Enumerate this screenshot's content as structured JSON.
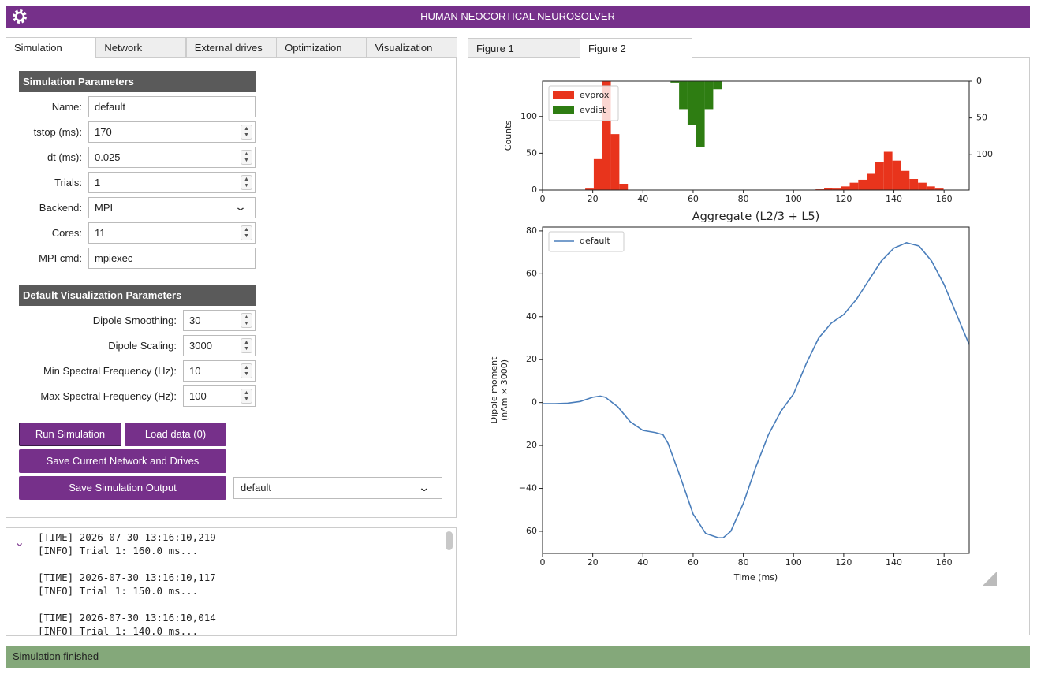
{
  "header": {
    "title": "HUMAN NEOCORTICAL NEUROSOLVER"
  },
  "tabs": [
    "Simulation",
    "Network",
    "External drives",
    "Optimization",
    "Visualization"
  ],
  "simulation_parameters": {
    "title": "Simulation Parameters",
    "fields": [
      {
        "label": "Name:",
        "value": "default"
      },
      {
        "label": "tstop (ms):",
        "value": 170
      },
      {
        "label": "dt (ms):",
        "value": 0.025
      },
      {
        "label": "Trials:",
        "value": 1
      },
      {
        "label": "Backend:",
        "value": "MPI"
      },
      {
        "label": "Cores:",
        "value": 11
      },
      {
        "label": "MPI cmd:",
        "value": "mpiexec"
      }
    ]
  },
  "visualization_parameters": {
    "title": "Default Visualization Parameters",
    "fields": [
      {
        "label": "Dipole Smoothing:",
        "value": 30
      },
      {
        "label": "Dipole Scaling:",
        "value": 3000
      },
      {
        "label": "Min Spectral Frequency (Hz):",
        "value": 10
      },
      {
        "label": "Max Spectral Frequency (Hz):",
        "value": 100
      }
    ]
  },
  "buttons": [
    "Run Simulation",
    "Load data (0)",
    "Save Current Network and Drives",
    "Save Simulation Output"
  ],
  "output_select": "default",
  "log": [
    "[TIME] 2026-07-30 13:16:10,219",
    "[INFO] Trial 1: 160.0 ms...",
    "[TIME] 2026-07-30 13:16:10,117",
    "[INFO] Trial 1: 150.0 ms...",
    "[TIME] 2026-07-30 13:16:10,014",
    "[INFO] Trial 1: 140.0 ms..."
  ],
  "figure_tabs": [
    "Figure 1",
    "Figure 2"
  ],
  "status": "Simulation finished",
  "chart_data": [
    {
      "type": "histogram",
      "xlabel": "Aggregate (L2/3 + L5)",
      "ylabel": "Counts",
      "bins": [
        0,
        3.4,
        6.8,
        10.2,
        13.6,
        17,
        20.4,
        23.8,
        27.2,
        30.6,
        34,
        37.4,
        40.8,
        44.2,
        47.6,
        51,
        54.4,
        57.8,
        61.2,
        64.6,
        68,
        71.4,
        74.8,
        78.2,
        81.6,
        85,
        88.4,
        91.8,
        95.2,
        98.6,
        102,
        105.4,
        108.8,
        112.2,
        115.6,
        119,
        122.4,
        125.8,
        129.2,
        132.6,
        136,
        139.4,
        142.8,
        146.2,
        149.6,
        153,
        156.4,
        159.8,
        163.2,
        166.6,
        170
      ],
      "series": [
        {
          "name": "evprox",
          "color": "#e8341c",
          "values": [
            0,
            0,
            0,
            0,
            0,
            2,
            42,
            148,
            76,
            8,
            0,
            0,
            0,
            0,
            0,
            0,
            0,
            0,
            0,
            0,
            0,
            0,
            0,
            0,
            0,
            0,
            0,
            0,
            0,
            0,
            0,
            0,
            1,
            3,
            2,
            5,
            10,
            14,
            22,
            38,
            52,
            40,
            26,
            15,
            10,
            5,
            2,
            0,
            0,
            0
          ]
        },
        {
          "name": "evdist",
          "color": "#2e7d12",
          "axis": "y2",
          "values": [
            0,
            0,
            0,
            0,
            0,
            0,
            0,
            0,
            0,
            0,
            0,
            0,
            0,
            0,
            0,
            2,
            38,
            60,
            89,
            38,
            11,
            0,
            0,
            0,
            0,
            0,
            0,
            0,
            0,
            0,
            0,
            0,
            0,
            0,
            0,
            0,
            0,
            0,
            0,
            0,
            0,
            0,
            0,
            0,
            0,
            0,
            0,
            0,
            0,
            0
          ]
        }
      ],
      "xlim": [
        0,
        170
      ],
      "xticks": [
        0,
        20,
        40,
        60,
        80,
        100,
        120,
        140,
        160
      ],
      "ylim": [
        0,
        148
      ],
      "yticks": [
        0,
        50,
        100
      ],
      "y2lim": [
        148,
        0
      ],
      "y2ticks": [
        0,
        50,
        100
      ],
      "legend": "upper left"
    },
    {
      "type": "line",
      "xlabel": "Time (ms)",
      "ylabel": [
        "Dipole moment",
        "(nAm × 3000)"
      ],
      "x": [
        0,
        5,
        10,
        15,
        20,
        23,
        25,
        30,
        35,
        40,
        45,
        48,
        50,
        55,
        60,
        65,
        70,
        72,
        75,
        80,
        85,
        90,
        95,
        100,
        105,
        110,
        115,
        120,
        125,
        130,
        135,
        140,
        145,
        150,
        155,
        160,
        165,
        170
      ],
      "series": [
        {
          "name": "default",
          "color": "#4a7ebb",
          "values": [
            -0.5,
            -0.5,
            -0.3,
            0.5,
            2.5,
            3,
            2.5,
            -2,
            -9,
            -13,
            -14,
            -15,
            -19,
            -35,
            -52,
            -61,
            -63,
            -63,
            -60,
            -47,
            -30,
            -15,
            -4,
            4,
            18,
            30,
            37,
            41,
            48,
            57,
            66,
            72,
            74.5,
            73,
            66,
            55,
            41,
            27
          ]
        }
      ],
      "xlim": [
        0,
        170
      ],
      "xticks": [
        0,
        20,
        40,
        60,
        80,
        100,
        120,
        140,
        160
      ],
      "ylim": [
        -70.3,
        81.8
      ],
      "yticks": [
        {
          "value": -60,
          "label": "−60"
        },
        {
          "value": -40,
          "label": "−40"
        },
        {
          "value": -20,
          "label": "−20"
        },
        0,
        20,
        40,
        60,
        80
      ],
      "legend": "upper left"
    }
  ]
}
